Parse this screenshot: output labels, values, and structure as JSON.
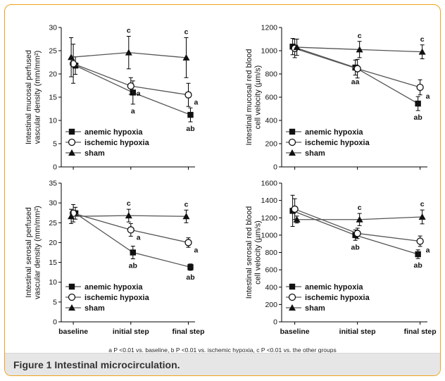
{
  "figure": {
    "label": "Figure 1",
    "title": "Intestinal microcirculation.",
    "footnote": "a P <0.01 vs. baseline, b P <0.01 vs. ischemic hypoxia, c P <0.01 vs. the other groups"
  },
  "colors": {
    "line": "#555555",
    "axis": "#000000",
    "marker": "#111111",
    "frame": "#f0a21a"
  },
  "chart_data": [
    {
      "type": "line",
      "ylabel": [
        "Intestinal mucosal perfused",
        "vascular density (mm/mm²)"
      ],
      "categories": [
        "baseline",
        "initial step",
        "final step"
      ],
      "ylim": [
        0,
        30
      ],
      "yticks": [
        0,
        5,
        10,
        15,
        20,
        25,
        30
      ],
      "legend_position": "lower-left",
      "show_xtick_labels": false,
      "series": [
        {
          "name": "anemic hypoxia",
          "marker": "square",
          "values": [
            21.8,
            16.0,
            11.2
          ],
          "err": [
            1.9,
            2.5,
            1.5
          ],
          "sig": [
            "",
            "a",
            "ab"
          ]
        },
        {
          "name": "ischemic hypoxia",
          "marker": "circle",
          "values": [
            22.2,
            17.4,
            15.5
          ],
          "err": [
            4.2,
            1.8,
            2.5
          ],
          "sig": [
            "",
            "a",
            "a"
          ]
        },
        {
          "name": "sham",
          "marker": "triangle",
          "values": [
            23.6,
            24.6,
            23.5
          ],
          "err": [
            4.2,
            3.5,
            4.3
          ],
          "sig": [
            "",
            "c",
            "c"
          ]
        }
      ]
    },
    {
      "type": "line",
      "ylabel": [
        "Intestinal mucosal red blood",
        "cell velocity (µm/s)"
      ],
      "categories": [
        "baseline",
        "initial step",
        "final step"
      ],
      "ylim": [
        0,
        1200
      ],
      "yticks": [
        0,
        200,
        400,
        600,
        800,
        1000,
        1200
      ],
      "legend_position": "lower-left",
      "show_xtick_labels": false,
      "series": [
        {
          "name": "anemic hypoxia",
          "marker": "square",
          "values": [
            1035,
            855,
            545
          ],
          "err": [
            70,
            65,
            60
          ],
          "sig": [
            "",
            "aa",
            "ab"
          ]
        },
        {
          "name": "ischemic hypoxia",
          "marker": "circle",
          "values": [
            1020,
            845,
            685
          ],
          "err": [
            80,
            80,
            65
          ],
          "sig": [
            "",
            "",
            "a"
          ]
        },
        {
          "name": "sham",
          "marker": "triangle",
          "values": [
            1030,
            1010,
            990
          ],
          "err": [
            70,
            70,
            60
          ],
          "sig": [
            "",
            "c",
            "c"
          ]
        }
      ]
    },
    {
      "type": "line",
      "ylabel": [
        "Intestinal serosal perfused",
        "vascular density (mm/mm²)"
      ],
      "categories": [
        "baseline",
        "initial step",
        "final step"
      ],
      "ylim": [
        0,
        35
      ],
      "yticks": [
        0,
        5,
        10,
        15,
        20,
        25,
        30,
        35
      ],
      "legend_position": "lower-left",
      "show_xtick_labels": true,
      "series": [
        {
          "name": "anemic hypoxia",
          "marker": "square",
          "values": [
            27.4,
            17.5,
            13.8
          ],
          "err": [
            1.5,
            1.6,
            0.8
          ],
          "sig": [
            "",
            "ab",
            "ab"
          ]
        },
        {
          "name": "ischemic hypoxia",
          "marker": "circle",
          "values": [
            27.4,
            23.2,
            20.0
          ],
          "err": [
            2.2,
            1.6,
            1.2
          ],
          "sig": [
            "",
            "a",
            "a"
          ]
        },
        {
          "name": "sham",
          "marker": "triangle",
          "values": [
            26.6,
            26.8,
            26.6
          ],
          "err": [
            1.8,
            1.6,
            1.6
          ],
          "sig": [
            "",
            "c",
            "c"
          ]
        }
      ]
    },
    {
      "type": "line",
      "ylabel": [
        "Intestinal serosal red blood",
        "cell velocity (µm/s)"
      ],
      "categories": [
        "baseline",
        "initial step",
        "final step"
      ],
      "ylim": [
        0,
        1600
      ],
      "yticks": [
        0,
        200,
        400,
        600,
        800,
        1000,
        1200,
        1400,
        1600
      ],
      "legend_position": "lower-left",
      "show_xtick_labels": true,
      "series": [
        {
          "name": "anemic hypoxia",
          "marker": "square",
          "values": [
            1280,
            1000,
            780
          ],
          "err": [
            180,
            60,
            50
          ],
          "sig": [
            "",
            "ab",
            "ab"
          ]
        },
        {
          "name": "ischemic hypoxia",
          "marker": "circle",
          "values": [
            1300,
            1020,
            930
          ],
          "err": [
            120,
            60,
            60
          ],
          "sig": [
            "",
            "",
            "a"
          ]
        },
        {
          "name": "sham",
          "marker": "triangle",
          "values": [
            1180,
            1180,
            1210
          ],
          "err": [
            40,
            70,
            80
          ],
          "sig": [
            "",
            "c",
            "c"
          ]
        }
      ]
    }
  ]
}
